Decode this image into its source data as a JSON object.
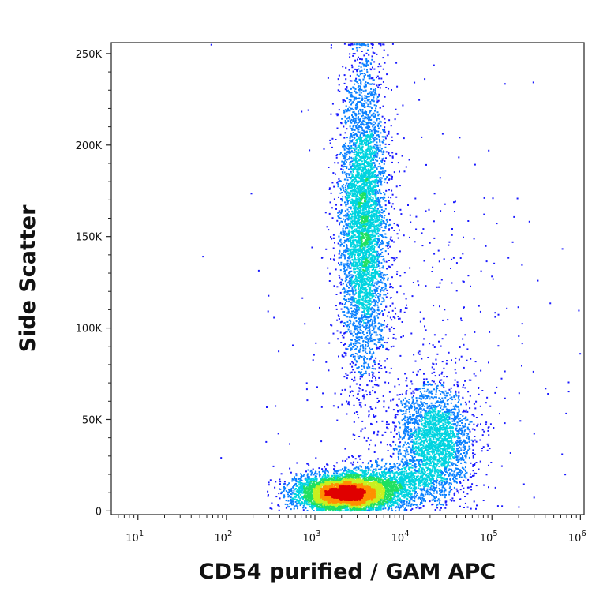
{
  "chart_data": {
    "type": "scatter",
    "subtype": "flow-cytometry-density-dot-plot",
    "xlabel": "CD54 purified / GAM APC",
    "ylabel": "Side Scatter",
    "x_scale": "log",
    "xlim": [
      5,
      1100000
    ],
    "ylim": [
      -2000,
      256000
    ],
    "x_ticks": [
      {
        "value": 10,
        "base": "10",
        "exp": "1"
      },
      {
        "value": 100,
        "base": "10",
        "exp": "2"
      },
      {
        "value": 1000,
        "base": "10",
        "exp": "3"
      },
      {
        "value": 10000,
        "base": "10",
        "exp": "4"
      },
      {
        "value": 100000,
        "base": "10",
        "exp": "5"
      },
      {
        "value": 1000000,
        "base": "10",
        "exp": "6"
      }
    ],
    "y_ticks": [
      {
        "value": 0,
        "label": "0"
      },
      {
        "value": 50000,
        "label": "50K"
      },
      {
        "value": 100000,
        "label": "100K"
      },
      {
        "value": 150000,
        "label": "150K"
      },
      {
        "value": 200000,
        "label": "200K"
      },
      {
        "value": 250000,
        "label": "250K"
      }
    ],
    "grid": false,
    "legend": "none",
    "density_colors": [
      "#1a1aff",
      "#0a80ff",
      "#00d4e0",
      "#20e060",
      "#c8f020",
      "#ff9000",
      "#e00000"
    ],
    "populations": [
      {
        "x_center": 2200,
        "x_log_sd": 0.28,
        "y_center": 10000,
        "y_sd": 5000,
        "weight": 0.38
      },
      {
        "x_center": 3500,
        "x_log_sd": 0.13,
        "y_center": 160000,
        "y_sd": 42000,
        "weight": 0.34
      },
      {
        "x_center": 22000,
        "x_log_sd": 0.22,
        "y_center": 40000,
        "y_sd": 14000,
        "weight": 0.16
      },
      {
        "x_center": 8000,
        "x_log_sd": 0.35,
        "y_center": 16000,
        "y_sd": 6000,
        "weight": 0.08
      },
      {
        "x_center": 15000,
        "x_log_sd": 0.7,
        "y_center": 90000,
        "y_sd": 60000,
        "weight": 0.04
      }
    ]
  }
}
